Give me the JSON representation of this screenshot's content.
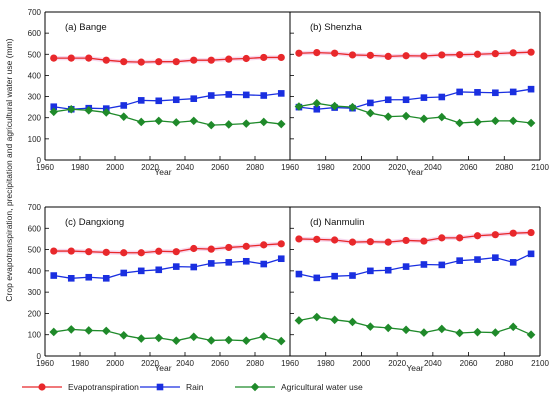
{
  "figure": {
    "ylabel": "Crop evapotranspiration, precipitation and agricultural water use (mm)",
    "xlabel": "Year"
  },
  "colors": {
    "evapotranspiration": "#e8282b",
    "rain": "#1a2fe0",
    "agricultural": "#1f8a2a",
    "band": "#f5c6e6"
  },
  "legend": {
    "placement": "bottom",
    "items": [
      {
        "key": "evapotranspiration",
        "label": "Evapotranspiration",
        "marker": "circle"
      },
      {
        "key": "rain",
        "label": "Rain",
        "marker": "square"
      },
      {
        "key": "agricultural",
        "label": "Agricultural water use",
        "marker": "diamond"
      }
    ]
  },
  "chart_data": [
    {
      "type": "line",
      "title": "(a) Bange",
      "x": [
        1965,
        1975,
        1985,
        1995,
        2005,
        2015,
        2025,
        2035,
        2045,
        2055,
        2065,
        2075,
        2085,
        2095
      ],
      "xlim": [
        1960,
        2100
      ],
      "xticks": [
        1960,
        1980,
        2000,
        2020,
        2040,
        2060,
        2080,
        2100
      ],
      "ylim": [
        0,
        700
      ],
      "yticks": [
        0,
        100,
        200,
        300,
        400,
        500,
        600,
        700
      ],
      "series": [
        {
          "key": "evapotranspiration",
          "name": "Evapotranspiration",
          "values": [
            482,
            482,
            482,
            472,
            465,
            463,
            465,
            465,
            472,
            472,
            477,
            480,
            485,
            485
          ]
        },
        {
          "key": "rain",
          "name": "Rain",
          "values": [
            252,
            240,
            245,
            243,
            258,
            282,
            280,
            285,
            290,
            305,
            310,
            308,
            305,
            315
          ]
        },
        {
          "key": "agricultural",
          "name": "Agricultural water use",
          "values": [
            228,
            240,
            235,
            225,
            205,
            180,
            185,
            178,
            185,
            165,
            168,
            172,
            180,
            170
          ]
        }
      ]
    },
    {
      "type": "line",
      "title": "(b) Shenzha",
      "x": [
        1965,
        1975,
        1985,
        1995,
        2005,
        2015,
        2025,
        2035,
        2045,
        2055,
        2065,
        2075,
        2085,
        2095
      ],
      "xlim": [
        1960,
        2100
      ],
      "xticks": [
        1960,
        1980,
        2000,
        2020,
        2040,
        2060,
        2080,
        2100
      ],
      "ylim": [
        0,
        700
      ],
      "yticks": [
        0,
        100,
        200,
        300,
        400,
        500,
        600,
        700
      ],
      "series": [
        {
          "key": "evapotranspiration",
          "name": "Evapotranspiration",
          "values": [
            505,
            508,
            505,
            497,
            495,
            490,
            493,
            492,
            497,
            498,
            500,
            503,
            507,
            510
          ]
        },
        {
          "key": "rain",
          "name": "Rain",
          "values": [
            250,
            240,
            248,
            245,
            270,
            285,
            285,
            295,
            298,
            322,
            320,
            318,
            322,
            335
          ]
        },
        {
          "key": "agricultural",
          "name": "Agricultural water use",
          "values": [
            253,
            268,
            255,
            250,
            222,
            205,
            208,
            195,
            203,
            175,
            180,
            185,
            185,
            175
          ]
        }
      ]
    },
    {
      "type": "line",
      "title": "(c) Dangxiong",
      "x": [
        1965,
        1975,
        1985,
        1995,
        2005,
        2015,
        2025,
        2035,
        2045,
        2055,
        2065,
        2075,
        2085,
        2095
      ],
      "xlim": [
        1960,
        2100
      ],
      "xticks": [
        1960,
        1980,
        2000,
        2020,
        2040,
        2060,
        2080,
        2100
      ],
      "ylim": [
        0,
        700
      ],
      "yticks": [
        0,
        100,
        200,
        300,
        400,
        500,
        600,
        700
      ],
      "series": [
        {
          "key": "evapotranspiration",
          "name": "Evapotranspiration",
          "values": [
            493,
            493,
            490,
            487,
            485,
            485,
            492,
            490,
            505,
            502,
            510,
            515,
            522,
            527
          ]
        },
        {
          "key": "rain",
          "name": "Rain",
          "values": [
            378,
            365,
            370,
            365,
            390,
            400,
            405,
            420,
            418,
            435,
            440,
            445,
            432,
            457
          ]
        },
        {
          "key": "agricultural",
          "name": "Agricultural water use",
          "values": [
            113,
            125,
            120,
            118,
            97,
            82,
            85,
            72,
            90,
            73,
            75,
            72,
            92,
            70
          ]
        }
      ]
    },
    {
      "type": "line",
      "title": "(d) Nanmulin",
      "x": [
        1965,
        1975,
        1985,
        1995,
        2005,
        2015,
        2025,
        2035,
        2045,
        2055,
        2065,
        2075,
        2085,
        2095
      ],
      "xlim": [
        1960,
        2100
      ],
      "xticks": [
        1960,
        1980,
        2000,
        2020,
        2040,
        2060,
        2080,
        2100
      ],
      "ylim": [
        0,
        700
      ],
      "yticks": [
        0,
        100,
        200,
        300,
        400,
        500,
        600,
        700
      ],
      "series": [
        {
          "key": "evapotranspiration",
          "name": "Evapotranspiration",
          "values": [
            550,
            548,
            545,
            535,
            537,
            535,
            543,
            540,
            555,
            555,
            565,
            570,
            577,
            580
          ]
        },
        {
          "key": "rain",
          "name": "Rain",
          "values": [
            385,
            367,
            375,
            378,
            400,
            403,
            420,
            430,
            428,
            448,
            453,
            462,
            440,
            480
          ]
        },
        {
          "key": "agricultural",
          "name": "Agricultural water use",
          "values": [
            167,
            183,
            170,
            160,
            138,
            132,
            123,
            110,
            127,
            108,
            112,
            110,
            137,
            100
          ]
        }
      ]
    }
  ]
}
